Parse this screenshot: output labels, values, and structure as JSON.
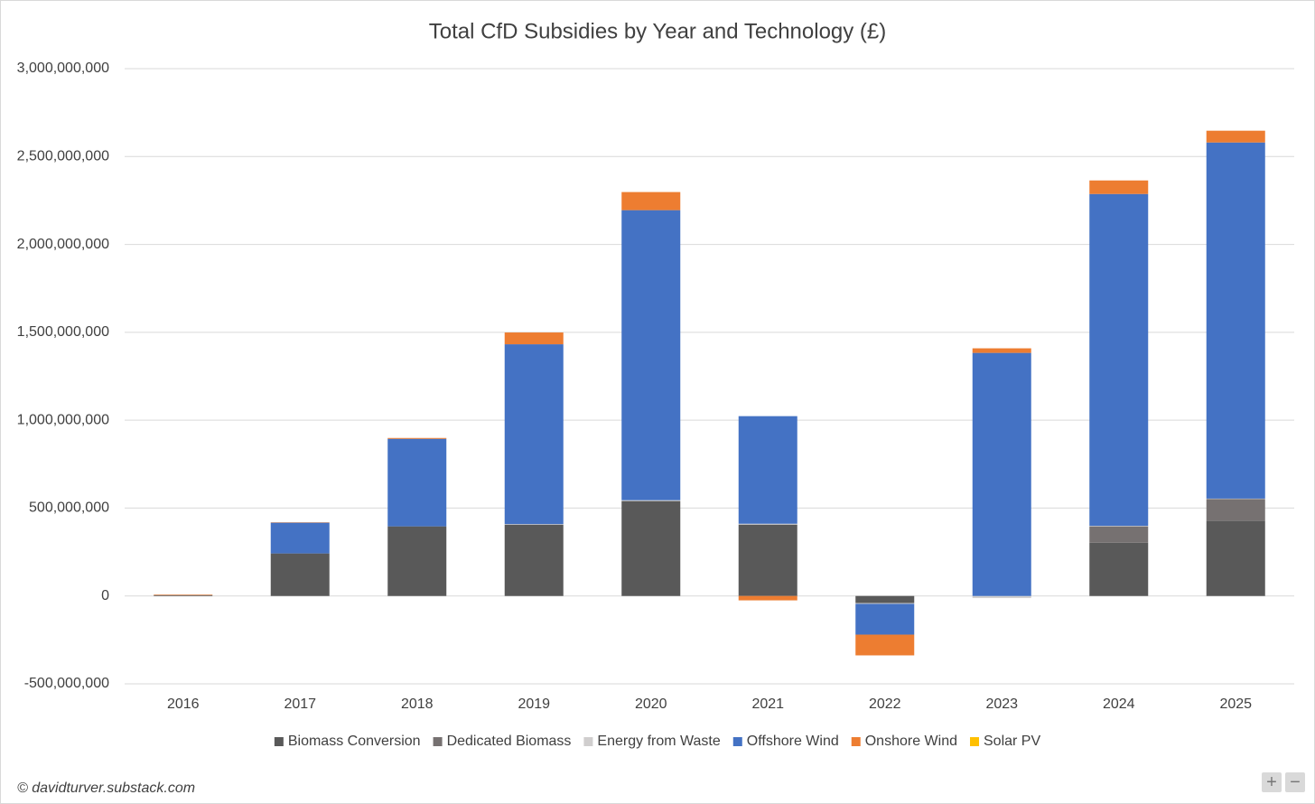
{
  "chart_data": {
    "type": "bar",
    "stacked": true,
    "title": "Total CfD Subsidies by Year and Technology (£)",
    "categories": [
      "2016",
      "2017",
      "2018",
      "2019",
      "2020",
      "2021",
      "2022",
      "2023",
      "2024",
      "2025"
    ],
    "series": [
      {
        "name": "Biomass Conversion",
        "color": "#595959",
        "values": [
          5000000,
          242000000,
          396000000,
          406000000,
          540000000,
          406000000,
          -40000000,
          0,
          303000000,
          427000000
        ]
      },
      {
        "name": "Dedicated Biomass",
        "color": "#767171",
        "values": [
          0,
          0,
          0,
          0,
          0,
          0,
          0,
          0,
          93000000,
          124000000
        ]
      },
      {
        "name": "Energy from Waste",
        "color": "#d0cece",
        "values": [
          0,
          0,
          0,
          3000000,
          5000000,
          5000000,
          -5000000,
          -12000000,
          3000000,
          3000000
        ]
      },
      {
        "name": "Offshore Wind",
        "color": "#4472c4",
        "values": [
          0,
          175000000,
          498000000,
          1023000000,
          1650000000,
          612000000,
          -175000000,
          1383000000,
          1888000000,
          2026000000
        ]
      },
      {
        "name": "Onshore Wind",
        "color": "#ed7d31",
        "values": [
          3000000,
          2000000,
          5000000,
          67000000,
          103000000,
          -25000000,
          -118000000,
          26000000,
          77000000,
          67000000
        ]
      },
      {
        "name": "Solar PV",
        "color": "#ffc000",
        "values": [
          0,
          0,
          0,
          0,
          0,
          0,
          0,
          0,
          0,
          0
        ]
      }
    ],
    "ylim": [
      -500000000,
      3000000000
    ],
    "yticks": [
      {
        "value": -500000000,
        "label": "-500,000,000"
      },
      0,
      {
        "value": 500000000,
        "label": "500,000,000"
      },
      {
        "value": 1000000000,
        "label": "1,000,000,000"
      },
      {
        "value": 1500000000,
        "label": "1,500,000,000"
      },
      {
        "value": 2000000000,
        "label": "2,000,000,000"
      },
      {
        "value": 2500000000,
        "label": "2,500,000,000"
      },
      {
        "value": 3000000000,
        "label": "3,000,000,000"
      }
    ],
    "grid": true,
    "legend": "bottom",
    "footer": "© davidturver.substack.com"
  },
  "zoom_controls": [
    "+",
    "−"
  ]
}
